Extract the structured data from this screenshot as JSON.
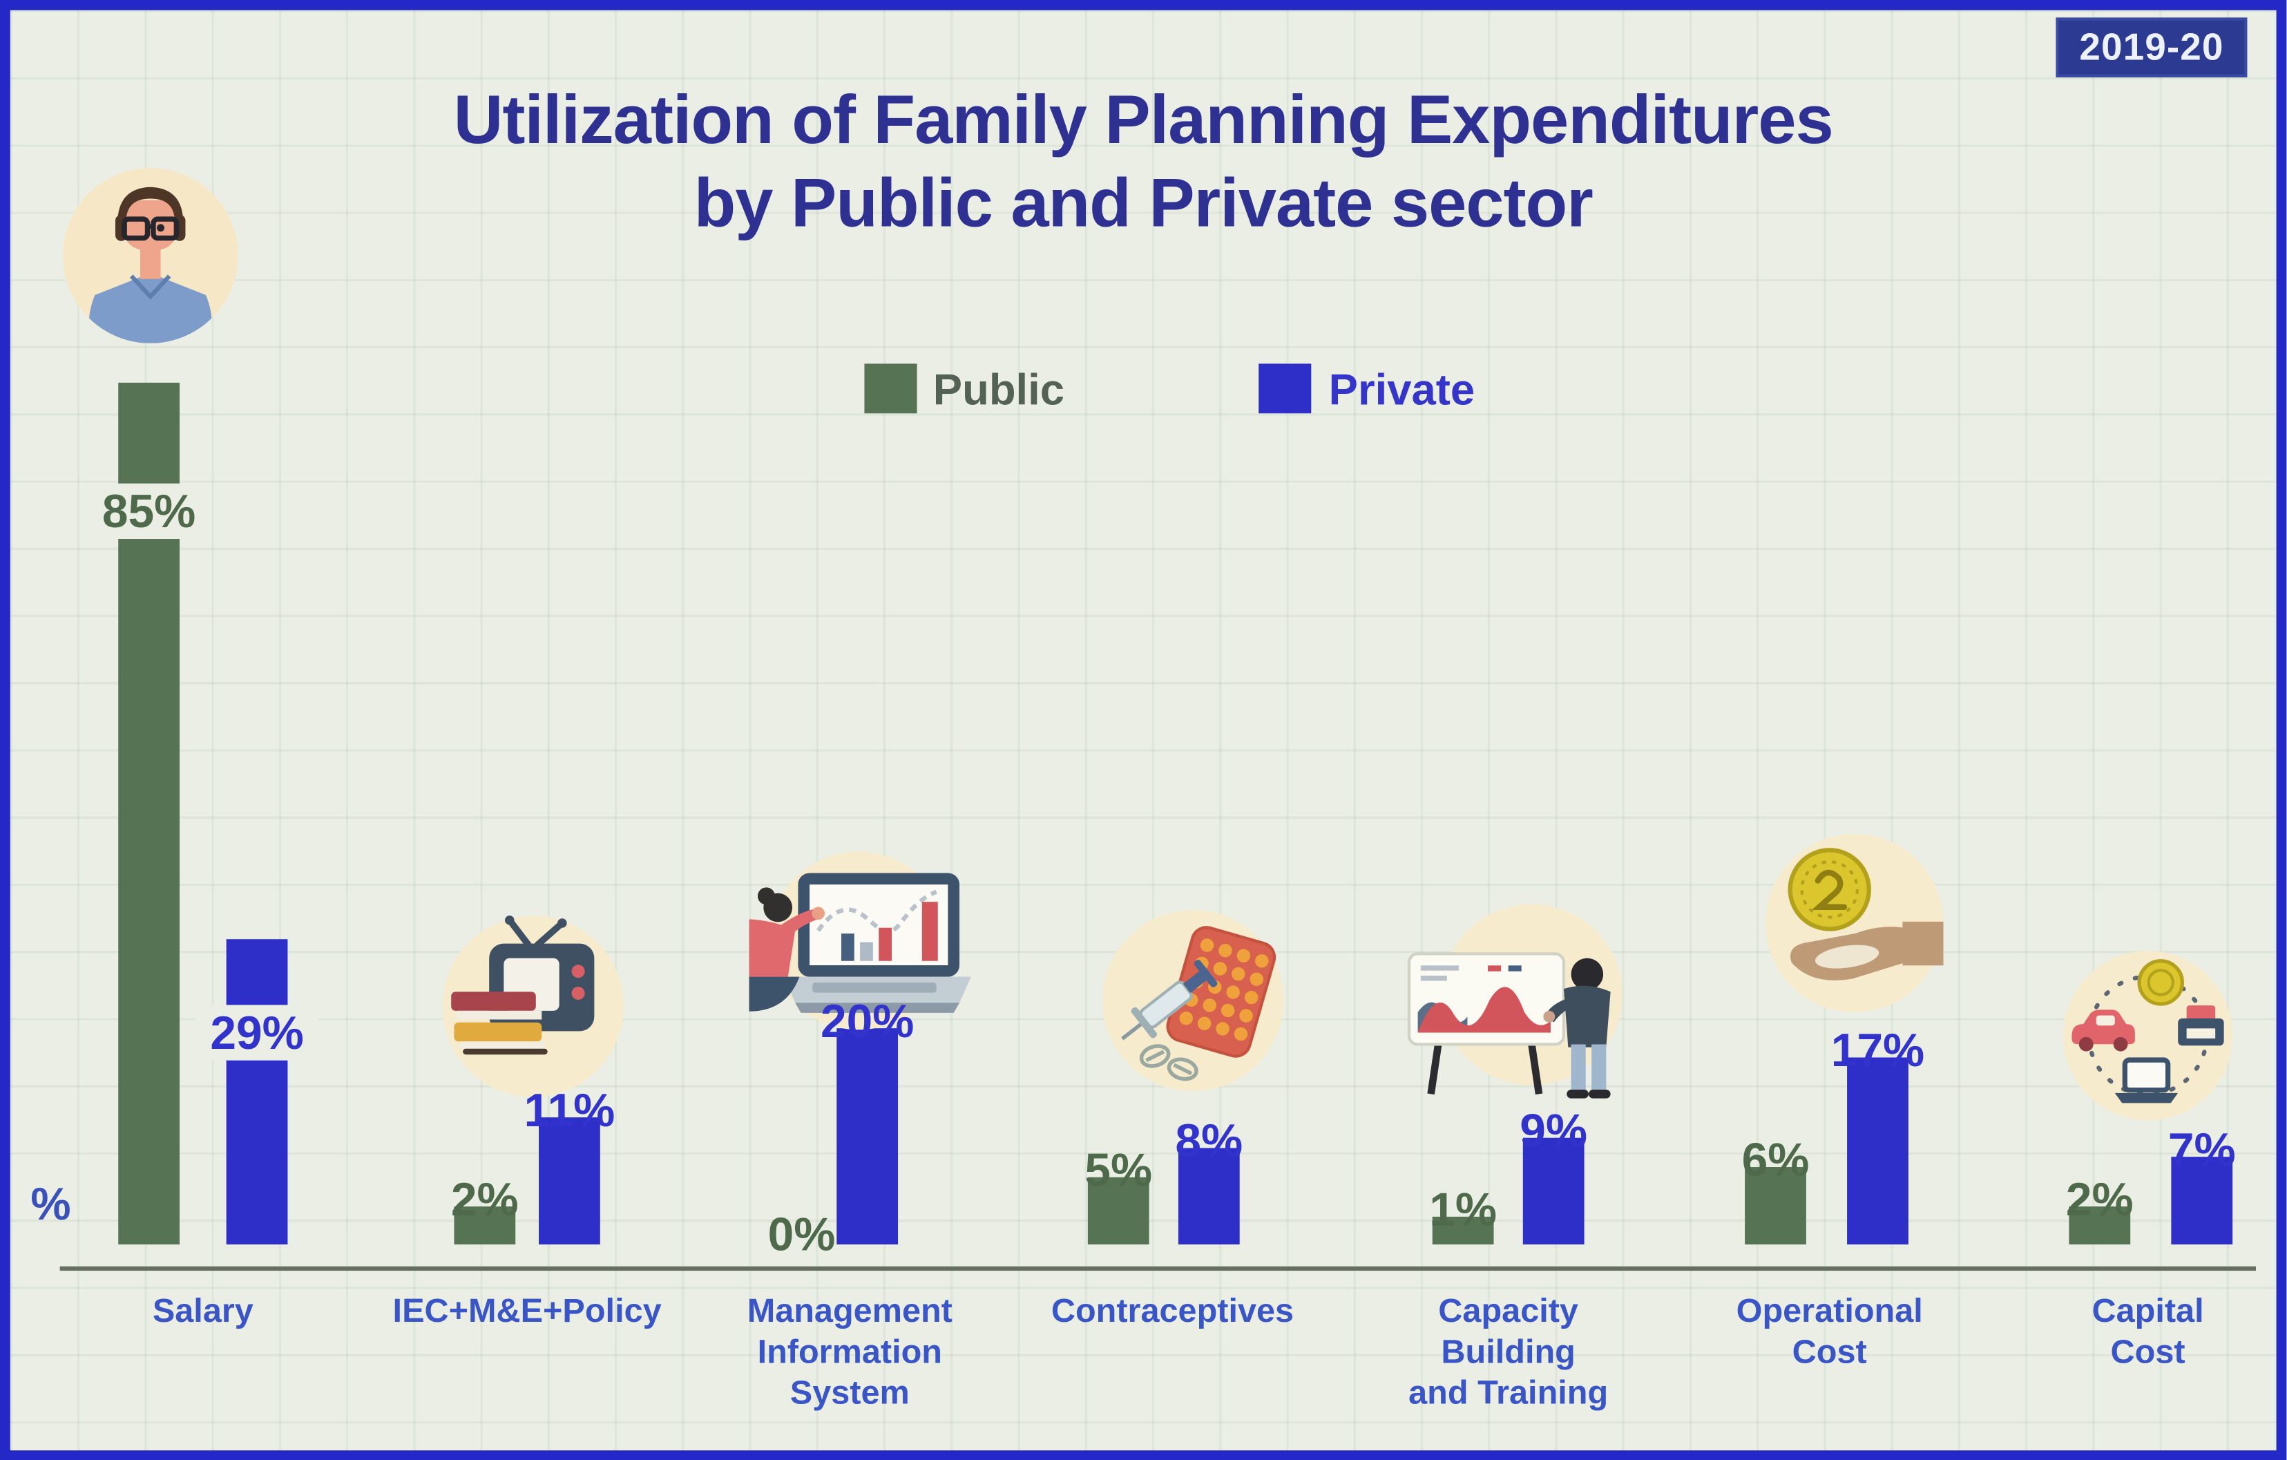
{
  "badge": "2019-20",
  "title": {
    "line1": "Utilization of Family Planning Expenditures",
    "line2": "by Public and Private sector"
  },
  "legend": [
    {
      "name": "Public",
      "color": "#567353"
    },
    {
      "name": "Private",
      "color": "#2e2ec8"
    }
  ],
  "axis": {
    "unit_label": "%"
  },
  "chart_data": {
    "type": "bar",
    "title": "Utilization of Family Planning Expenditures by Public and Private sector",
    "period": "2019-20",
    "unit": "percent",
    "categories": [
      "Salary",
      "IEC+M&E+Policy",
      "Management\nInformation\nSystem",
      "Contraceptives",
      "Capacity\nBuilding\nand Training",
      "Operational\nCost",
      "Capital\nCost"
    ],
    "series": [
      {
        "name": "Public",
        "color": "#567353",
        "values": [
          85,
          2,
          0,
          5,
          1,
          6,
          2
        ]
      },
      {
        "name": "Private",
        "color": "#2e2ec8",
        "values": [
          29,
          11,
          20,
          8,
          9,
          17,
          7
        ]
      }
    ],
    "value_labels": {
      "public": [
        "85%",
        "2%",
        "0%",
        "5%",
        "1%",
        "6%",
        "2%"
      ],
      "private": [
        "29%",
        "11%",
        "20%",
        "8%",
        "9%",
        "17%",
        "7%"
      ]
    },
    "ylim": [
      0,
      100
    ],
    "legend_position": "top-center",
    "grid": true
  },
  "icons": {
    "salary": "person-avatar-icon",
    "iec_me_policy": "tv-books-icon",
    "management_information_system": "laptop-presentation-icon",
    "contraceptives": "syringe-pills-icon",
    "capacity_building_and_training": "training-whiteboard-icon",
    "operational_cost": "hand-coin-icon",
    "capital_cost": "assets-cycle-icon"
  }
}
